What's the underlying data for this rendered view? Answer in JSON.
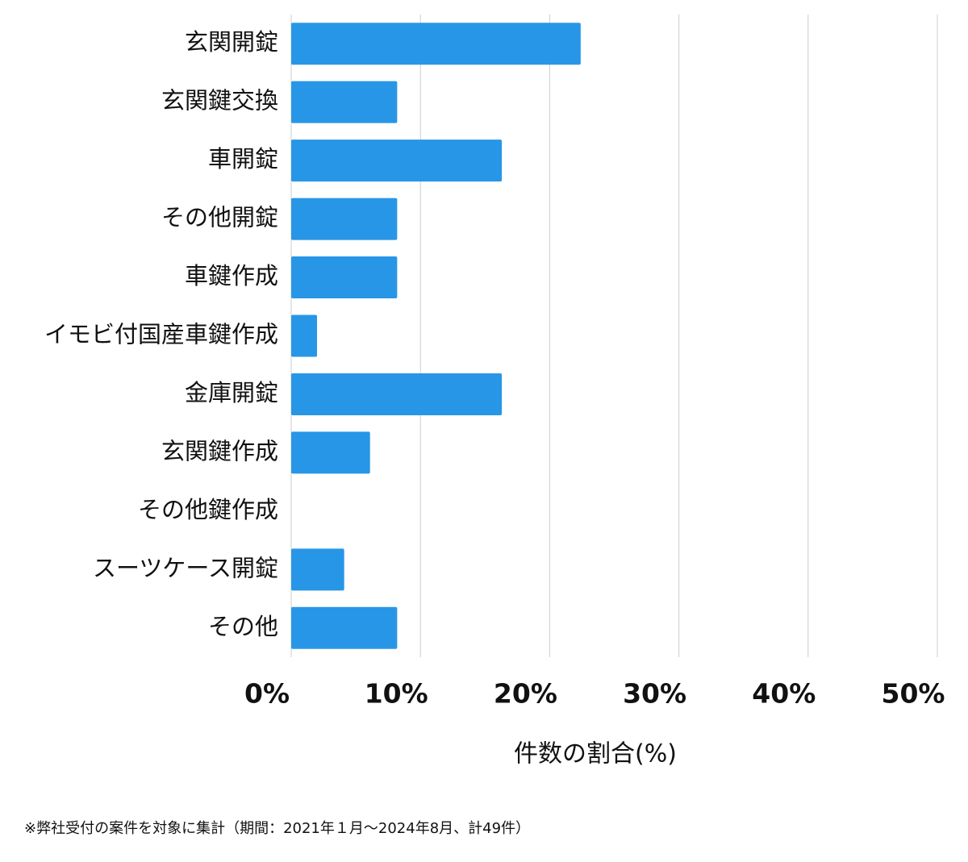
{
  "chart_data": {
    "type": "bar",
    "orientation": "horizontal",
    "categories": [
      "玄関開錠",
      "玄関鍵交換",
      "車開錠",
      "その他開錠",
      "車鍵作成",
      "イモビ付国産車鍵作成",
      "金庫開錠",
      "玄関鍵作成",
      "その他鍵作成",
      "スーツケース開錠",
      "その他"
    ],
    "values": [
      22.4,
      8.2,
      16.3,
      8.2,
      8.2,
      2.0,
      16.3,
      6.1,
      0,
      4.1,
      8.2
    ],
    "color": "#2896e6",
    "xlim": [
      0,
      50
    ],
    "xticks": [
      {
        "value": 0,
        "label": "0%"
      },
      {
        "value": 10,
        "label": "10%"
      },
      {
        "value": 20,
        "label": "20%"
      },
      {
        "value": 30,
        "label": "30%"
      },
      {
        "value": 40,
        "label": "40%"
      },
      {
        "value": 50,
        "label": "50%"
      }
    ],
    "xlabel": "件数の割合(%)",
    "grid": true,
    "note": "※弊社受付の案件を対象に集計（期間：2021年１月〜2024年8月、計49件）"
  }
}
